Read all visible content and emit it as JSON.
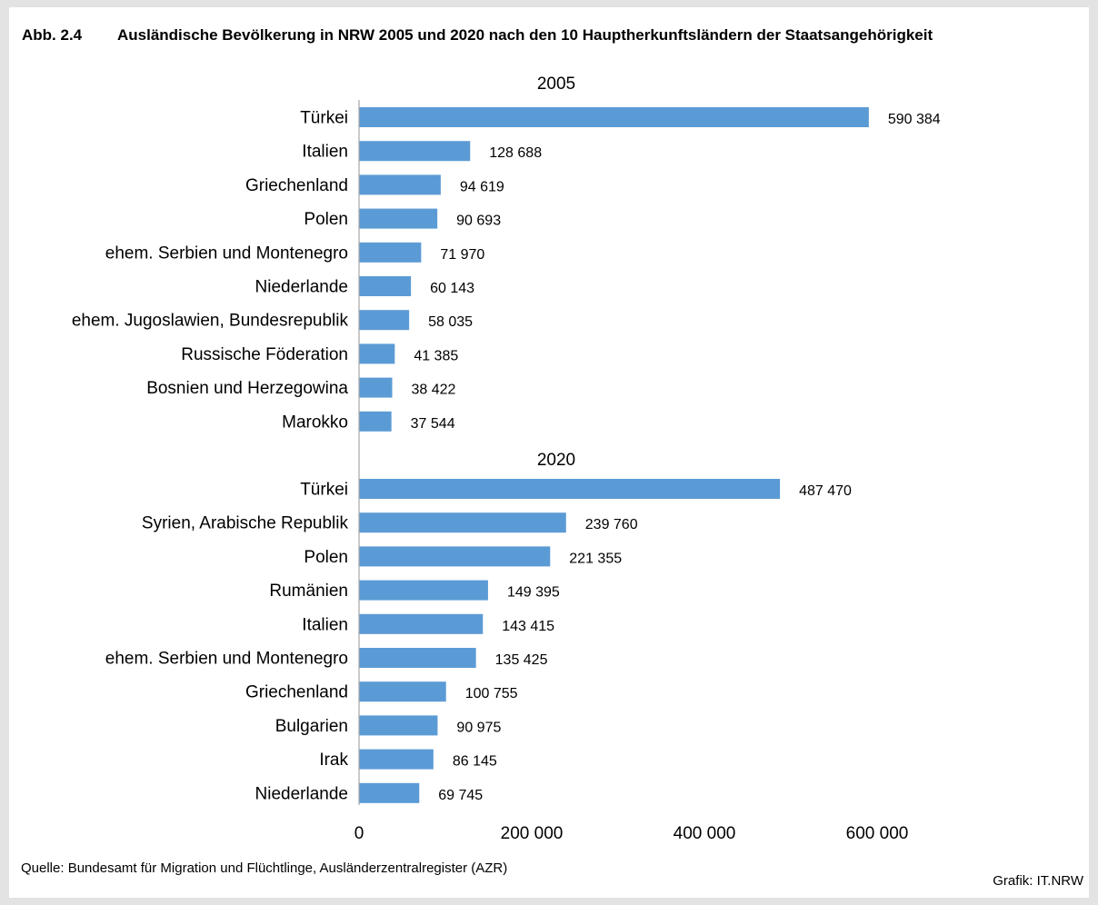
{
  "figure": {
    "number": "Abb. 2.4",
    "title": "Ausländische Bevölkerung in NRW 2005 und 2020 nach den 10 Hauptherkunftsländern der Staatsangehörigkeit",
    "source": "Quelle: Bundesamt für Migration und Flüchtlinge, Ausländerzentralregister (AZR)",
    "credit": "Grafik: IT.NRW"
  },
  "colors": {
    "bar": "#5b9bd5",
    "axis": "#a6a6a6",
    "background": "#ffffff",
    "page_background": "#e3e3e3"
  },
  "chart_data": {
    "type": "bar",
    "orientation": "horizontal",
    "title": "Ausländische Bevölkerung in NRW 2005 und 2020 nach den 10 Hauptherkunftsländern der Staatsangehörigkeit",
    "xlabel": "",
    "ylabel": "",
    "xlim": [
      0,
      600000
    ],
    "xticks": [
      0,
      200000,
      400000,
      600000
    ],
    "xtick_labels": [
      "0",
      "200 000",
      "400 000",
      "600 000"
    ],
    "grid": false,
    "legend": "none",
    "groups": [
      {
        "name": "2005",
        "categories": [
          "Türkei",
          "Italien",
          "Griechenland",
          "Polen",
          "ehem. Serbien und Montenegro",
          "Niederlande",
          "ehem. Jugoslawien, Bundesrepublik",
          "Russische Föderation",
          "Bosnien und Herzegowina",
          "Marokko"
        ],
        "values": [
          590384,
          128688,
          94619,
          90693,
          71970,
          60143,
          58035,
          41385,
          38422,
          37544
        ],
        "value_labels": [
          "590 384",
          "128 688",
          "94 619",
          "90 693",
          "71 970",
          "60 143",
          "58 035",
          "41 385",
          "38 422",
          "37 544"
        ]
      },
      {
        "name": "2020",
        "categories": [
          "Türkei",
          "Syrien, Arabische Republik",
          "Polen",
          "Rumänien",
          "Italien",
          "ehem. Serbien und Montenegro",
          "Griechenland",
          "Bulgarien",
          "Irak",
          "Niederlande"
        ],
        "values": [
          487470,
          239760,
          221355,
          149395,
          143415,
          135425,
          100755,
          90975,
          86145,
          69745
        ],
        "value_labels": [
          "487 470",
          "239 760",
          "221 355",
          "149 395",
          "143 415",
          "135 425",
          "100 755",
          "90 975",
          "86 145",
          "69 745"
        ]
      }
    ]
  }
}
